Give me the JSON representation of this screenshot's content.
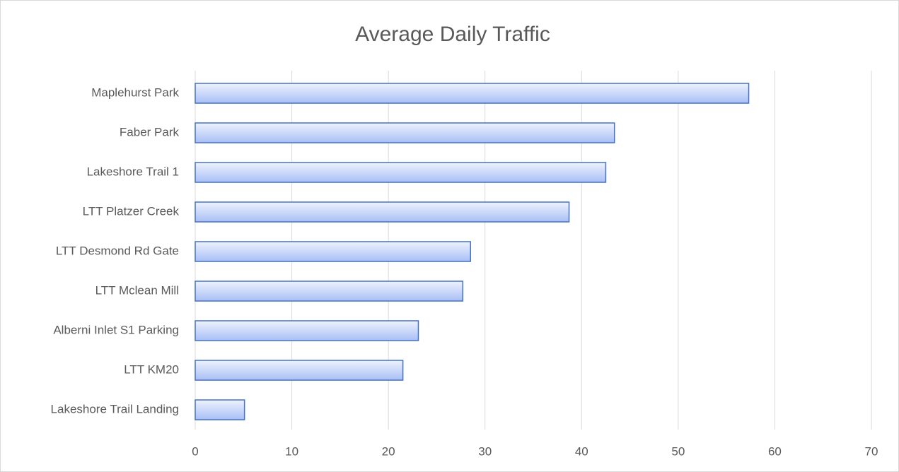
{
  "chart_data": {
    "type": "bar",
    "orientation": "horizontal",
    "title": "Average Daily Traffic",
    "categories": [
      "Maplehurst Park",
      "Faber Park",
      "Lakeshore Trail 1",
      "LTT Platzer Creek",
      "LTT Desmond Rd Gate",
      "LTT Mclean Mill",
      "Alberni Inlet S1 Parking",
      "LTT KM20",
      "Lakeshore Trail Landing"
    ],
    "values": [
      57.3,
      43.4,
      42.5,
      38.7,
      28.5,
      27.7,
      23.1,
      21.5,
      5.1
    ],
    "color": "#4472c4",
    "xlim": [
      0,
      70
    ],
    "xticks": [
      0,
      10,
      20,
      30,
      40,
      50,
      60,
      70
    ],
    "grid": true
  }
}
